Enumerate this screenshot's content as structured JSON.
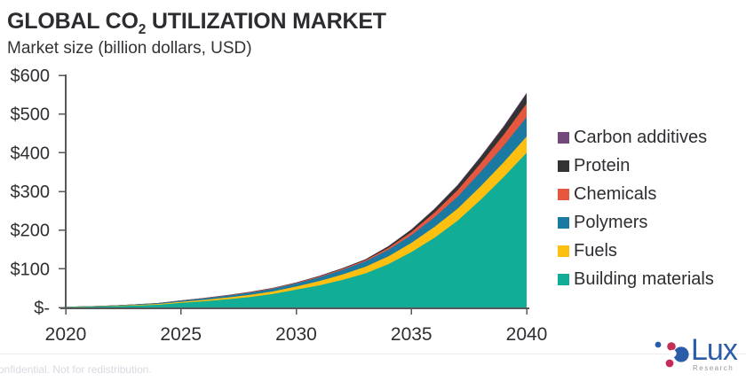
{
  "header": {
    "title_prefix": "GLOBAL CO",
    "title_subscript": "2",
    "title_suffix": " UTILIZATION MARKET",
    "subtitle": "Market size (billion dollars, USD)"
  },
  "chart_data": {
    "type": "area",
    "stacked": true,
    "title": "GLOBAL CO2 UTILIZATION MARKET",
    "subtitle": "Market size (billion dollars, USD)",
    "xlabel": "",
    "ylabel": "Market size (billion dollars, USD)",
    "ylim": [
      0,
      600
    ],
    "grid": false,
    "legend_position": "right",
    "x": [
      2020,
      2021,
      2022,
      2023,
      2024,
      2025,
      2026,
      2027,
      2028,
      2029,
      2030,
      2031,
      2032,
      2033,
      2034,
      2035,
      2036,
      2037,
      2038,
      2039,
      2040
    ],
    "x_ticks": [
      2020,
      2025,
      2030,
      2035,
      2040
    ],
    "y_ticks": [
      {
        "value": 600,
        "label": "$600"
      },
      {
        "value": 500,
        "label": "$500"
      },
      {
        "value": 400,
        "label": "$400"
      },
      {
        "value": 300,
        "label": "$300"
      },
      {
        "value": 200,
        "label": "$200"
      },
      {
        "value": 100,
        "label": "$100"
      },
      {
        "value": 0,
        "label": "$-"
      }
    ],
    "series": [
      {
        "name": "Building materials",
        "color": "#12ad97",
        "values": [
          1,
          2,
          3,
          5,
          7,
          12,
          16,
          21,
          27,
          35,
          46,
          57,
          71,
          88,
          112,
          143,
          180,
          224,
          278,
          337,
          400
        ]
      },
      {
        "name": "Fuels",
        "color": "#fdc010",
        "values": [
          0.3,
          0.5,
          0.8,
          1.2,
          1.8,
          2.5,
          3.5,
          4.5,
          5.5,
          6.5,
          8,
          11,
          14,
          17,
          20,
          24,
          28,
          31,
          35,
          38,
          42
        ]
      },
      {
        "name": "Polymers",
        "color": "#1b7aa2",
        "values": [
          0.3,
          0.6,
          1,
          1.5,
          2,
          3,
          4,
          5,
          6,
          7,
          8,
          10,
          12,
          14,
          17,
          20,
          25,
          31,
          37,
          43,
          50
        ]
      },
      {
        "name": "Chemicals",
        "color": "#e65740",
        "values": [
          0,
          0.1,
          0.2,
          0.3,
          0.4,
          0.5,
          0.7,
          0.9,
          1.1,
          1.3,
          1.5,
          2,
          2.5,
          3,
          5,
          8,
          12,
          17,
          22,
          28,
          35
        ]
      },
      {
        "name": "Protein",
        "color": "#333333",
        "values": [
          0,
          0,
          0.1,
          0.1,
          0.2,
          0.3,
          0.4,
          0.5,
          0.7,
          0.8,
          1,
          1.3,
          1.6,
          2,
          4,
          6,
          9,
          12,
          16,
          20,
          25
        ]
      },
      {
        "name": "Carbon additives",
        "color": "#73497b",
        "values": [
          0,
          0,
          0,
          0,
          0.1,
          0.1,
          0.1,
          0.2,
          0.2,
          0.2,
          0.3,
          0.4,
          0.4,
          0.5,
          0.7,
          1,
          1.3,
          1.7,
          2.2,
          2.6,
          3
        ]
      }
    ],
    "legend": [
      {
        "label": "Carbon additives",
        "color": "#73497b"
      },
      {
        "label": "Protein",
        "color": "#333333"
      },
      {
        "label": "Chemicals",
        "color": "#e65740"
      },
      {
        "label": "Polymers",
        "color": "#1b7aa2"
      },
      {
        "label": "Fuels",
        "color": "#fdc010"
      },
      {
        "label": "Building materials",
        "color": "#12ad97"
      }
    ],
    "axis_color": "#58585a",
    "tick_label_color": "#2f2f33"
  },
  "footer": {
    "confidential": "onfidential. Not for redistribution.",
    "logo_text": "Lux",
    "logo_subtext": "Research"
  }
}
